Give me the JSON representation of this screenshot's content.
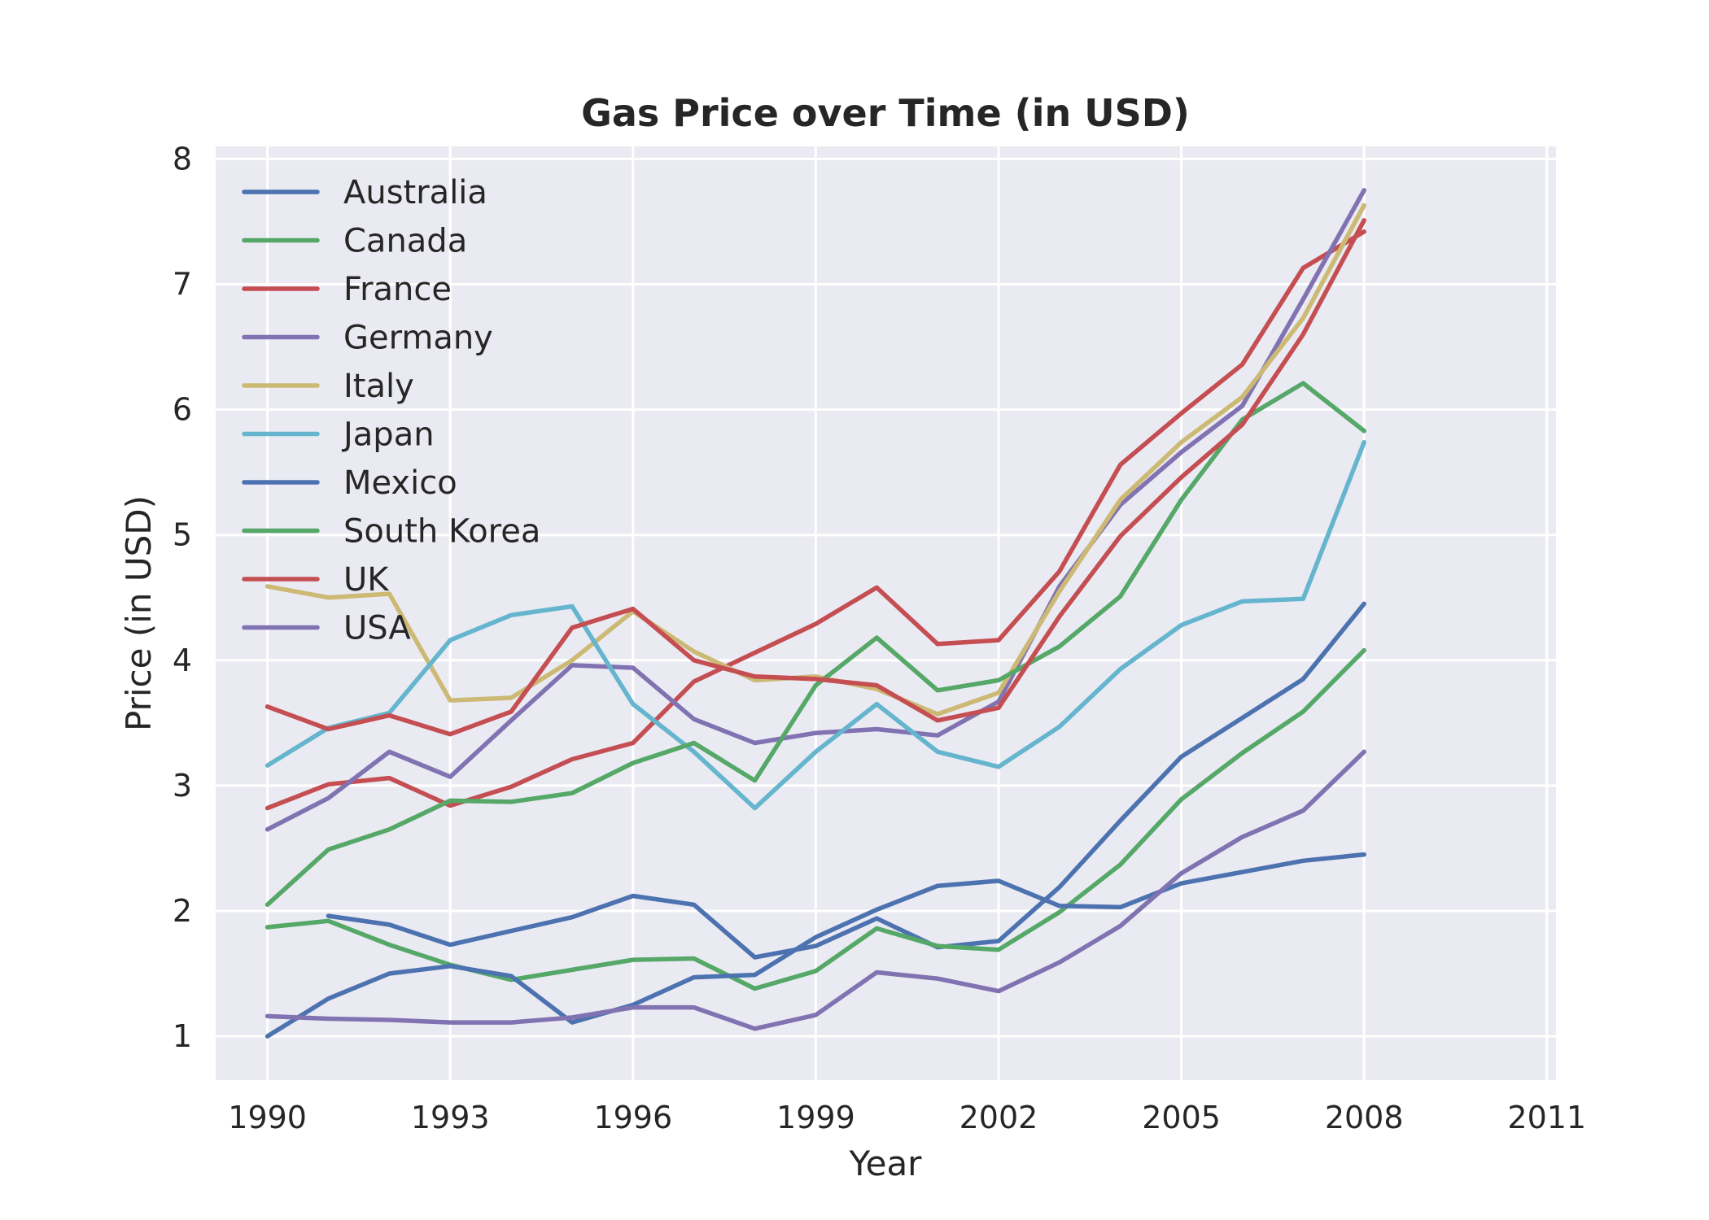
{
  "chart_data": {
    "type": "line",
    "title": "Gas Price over Time (in USD)",
    "xlabel": "Year",
    "ylabel": "Price (in USD)",
    "xlim": [
      1989.15,
      2011.15
    ],
    "ylim": [
      0.65,
      8.1
    ],
    "xticks": [
      1990,
      1993,
      1996,
      1999,
      2002,
      2005,
      2008,
      2011
    ],
    "yticks": [
      1,
      2,
      3,
      4,
      5,
      6,
      7,
      8
    ],
    "grid": true,
    "legend_position": "upper-left",
    "x": [
      1990,
      1991,
      1992,
      1993,
      1994,
      1995,
      1996,
      1997,
      1998,
      1999,
      2000,
      2001,
      2002,
      2003,
      2004,
      2005,
      2006,
      2007,
      2008
    ],
    "series": [
      {
        "name": "Australia",
        "color": "#4c72b0",
        "values": [
          null,
          1.96,
          1.89,
          1.73,
          1.84,
          1.95,
          2.12,
          2.05,
          1.63,
          1.72,
          1.94,
          1.71,
          1.76,
          2.19,
          2.72,
          3.23,
          3.54,
          3.85,
          4.45
        ]
      },
      {
        "name": "Canada",
        "color": "#55a868",
        "values": [
          1.87,
          1.92,
          1.73,
          1.57,
          1.45,
          1.53,
          1.61,
          1.62,
          1.38,
          1.52,
          1.86,
          1.72,
          1.69,
          1.99,
          2.37,
          2.89,
          3.26,
          3.59,
          4.08
        ]
      },
      {
        "name": "France",
        "color": "#c44e52",
        "values": [
          2.82,
          3.01,
          3.06,
          2.84,
          2.99,
          3.21,
          3.34,
          3.83,
          4.06,
          4.29,
          4.58,
          4.13,
          4.16,
          4.71,
          5.56,
          5.97,
          6.36,
          7.13,
          7.42
        ]
      },
      {
        "name": "Germany",
        "color": "#8172b2",
        "values": [
          2.65,
          2.9,
          3.27,
          3.07,
          3.52,
          3.96,
          3.94,
          3.53,
          3.34,
          3.42,
          3.45,
          3.4,
          3.67,
          4.59,
          5.24,
          5.66,
          6.03,
          6.88,
          7.75
        ]
      },
      {
        "name": "Italy",
        "color": "#ccb974",
        "values": [
          4.59,
          4.5,
          4.53,
          3.68,
          3.7,
          4.0,
          4.39,
          4.07,
          3.84,
          3.87,
          3.77,
          3.57,
          3.74,
          4.55,
          5.28,
          5.74,
          6.1,
          6.73,
          7.63
        ]
      },
      {
        "name": "Japan",
        "color": "#64b5cd",
        "values": [
          3.16,
          3.46,
          3.58,
          4.16,
          4.36,
          4.43,
          3.65,
          3.27,
          2.82,
          3.27,
          3.65,
          3.27,
          3.15,
          3.47,
          3.93,
          4.28,
          4.47,
          4.49,
          5.74
        ]
      },
      {
        "name": "Mexico",
        "color": "#4c72b0",
        "values": [
          1.0,
          1.3,
          1.5,
          1.56,
          1.48,
          1.11,
          1.25,
          1.47,
          1.49,
          1.79,
          2.01,
          2.2,
          2.24,
          2.04,
          2.03,
          2.22,
          2.31,
          2.4,
          2.45
        ]
      },
      {
        "name": "South Korea",
        "color": "#55a868",
        "values": [
          2.05,
          2.49,
          2.65,
          2.88,
          2.87,
          2.94,
          3.18,
          3.34,
          3.04,
          3.8,
          4.18,
          3.76,
          3.84,
          4.11,
          4.51,
          5.28,
          5.92,
          6.21,
          5.83
        ]
      },
      {
        "name": "UK",
        "color": "#c44e52",
        "values": [
          3.63,
          3.45,
          3.56,
          3.41,
          3.59,
          4.26,
          4.41,
          4.0,
          3.87,
          3.85,
          3.8,
          3.52,
          3.62,
          4.35,
          4.99,
          5.46,
          5.88,
          6.6,
          7.51
        ]
      },
      {
        "name": "USA",
        "color": "#8172b2",
        "values": [
          1.16,
          1.14,
          1.13,
          1.11,
          1.11,
          1.15,
          1.23,
          1.23,
          1.06,
          1.17,
          1.51,
          1.46,
          1.36,
          1.59,
          1.88,
          2.3,
          2.59,
          2.8,
          3.27
        ]
      }
    ]
  },
  "style": {
    "plot_background": "#eaeaf2",
    "grid_color": "#ffffff",
    "text_color": "#262626"
  }
}
